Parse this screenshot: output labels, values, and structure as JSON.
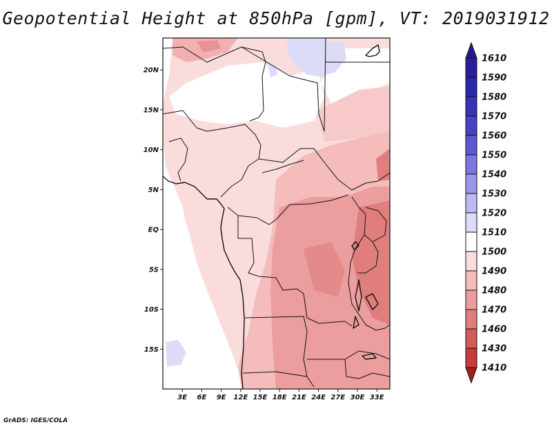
{
  "title": "Geopotential Height at 850hPa [gpm], VT: 2019031912",
  "credit": "GrADS: IGES/COLA",
  "map": {
    "lon_range": [
      0,
      35
    ],
    "lat_range": [
      -20,
      24
    ],
    "lat_ticks": [
      {
        "value": 20,
        "label": "20N"
      },
      {
        "value": 15,
        "label": "15N"
      },
      {
        "value": 10,
        "label": "10N"
      },
      {
        "value": 5,
        "label": "5N"
      },
      {
        "value": 0,
        "label": "EQ"
      },
      {
        "value": -5,
        "label": "5S"
      },
      {
        "value": -10,
        "label": "10S"
      },
      {
        "value": -15,
        "label": "15S"
      }
    ],
    "lon_ticks": [
      {
        "value": 3,
        "label": "3E"
      },
      {
        "value": 6,
        "label": "6E"
      },
      {
        "value": 9,
        "label": "9E"
      },
      {
        "value": 12,
        "label": "12E"
      },
      {
        "value": 15,
        "label": "15E"
      },
      {
        "value": 18,
        "label": "18E"
      },
      {
        "value": 21,
        "label": "21E"
      },
      {
        "value": 24,
        "label": "24E"
      },
      {
        "value": 27,
        "label": "27E"
      },
      {
        "value": 30,
        "label": "30E"
      },
      {
        "value": 33,
        "label": "33E"
      }
    ]
  },
  "colorbar": {
    "levels": [
      {
        "label": "1610",
        "color": "#2a1d9a"
      },
      {
        "label": "1590",
        "color": "#2a27a8"
      },
      {
        "label": "1580",
        "color": "#3633b4"
      },
      {
        "label": "1570",
        "color": "#4743c2"
      },
      {
        "label": "1560",
        "color": "#5e58d2"
      },
      {
        "label": "1550",
        "color": "#7d76e0"
      },
      {
        "label": "1540",
        "color": "#9d97ea"
      },
      {
        "label": "1530",
        "color": "#bdb9f2"
      },
      {
        "label": "1520",
        "color": "#dcdbf8"
      },
      {
        "label": "1510",
        "color": "#ffffff"
      },
      {
        "label": "1500",
        "color": "#fbdcdc"
      },
      {
        "label": "1490",
        "color": "#f5bcbc"
      },
      {
        "label": "1480",
        "color": "#ec9e9e"
      },
      {
        "label": "1470",
        "color": "#e07e7e"
      },
      {
        "label": "1460",
        "color": "#d55a5a"
      },
      {
        "label": "1430",
        "color": "#c53c3c"
      },
      {
        "label": "1410",
        "color": "#b42828"
      }
    ],
    "top_color": "#24188c",
    "bottom_color": "#a21e1e"
  }
}
